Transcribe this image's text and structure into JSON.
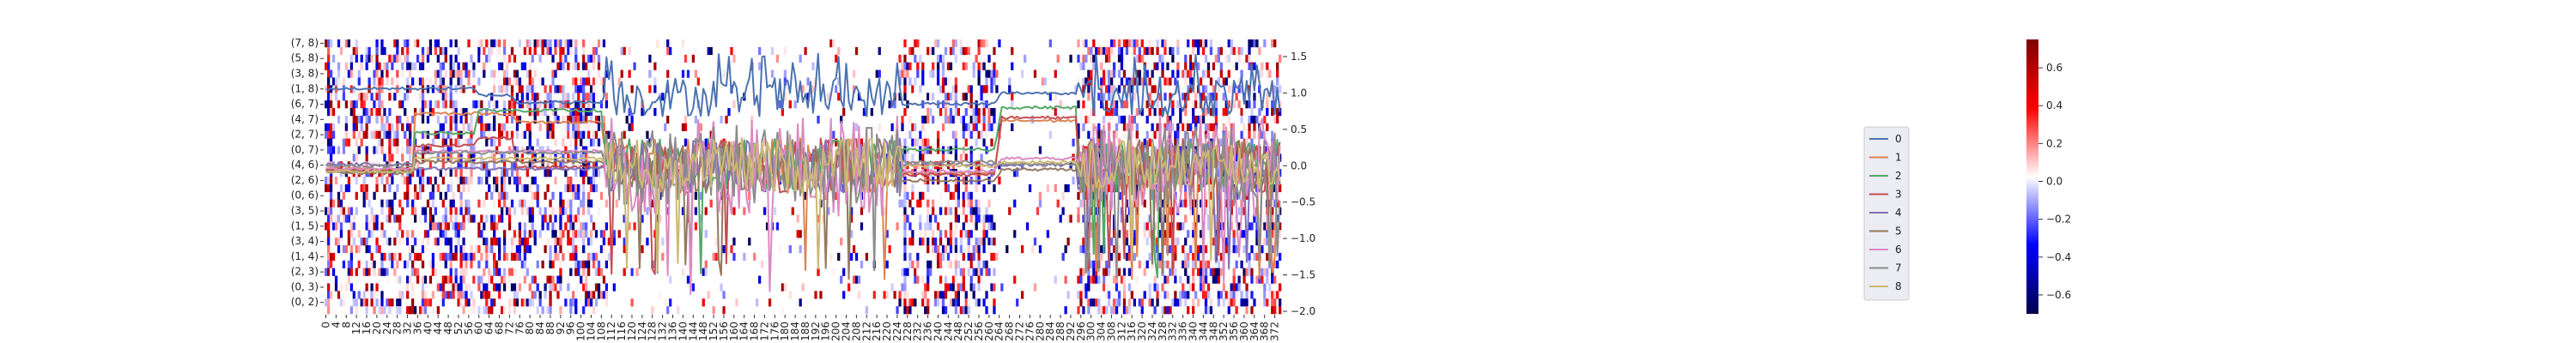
{
  "chart_data": [
    {
      "type": "heatmap",
      "x_tick_labels": [
        "0",
        "4",
        "8",
        "12",
        "16",
        "20",
        "24",
        "28",
        "32",
        "36",
        "40",
        "44",
        "48",
        "52",
        "56",
        "60",
        "64",
        "68",
        "72",
        "76",
        "80",
        "84",
        "88",
        "92",
        "96",
        "100",
        "104",
        "108",
        "112",
        "116",
        "120",
        "124",
        "128",
        "132",
        "136",
        "140",
        "144",
        "148",
        "152",
        "156",
        "160",
        "164",
        "168",
        "172",
        "176",
        "180",
        "184",
        "188",
        "192",
        "196",
        "200",
        "204",
        "208",
        "212",
        "216",
        "220",
        "224",
        "228",
        "232",
        "236",
        "240",
        "244",
        "248",
        "252",
        "256",
        "260",
        "264",
        "268",
        "272",
        "276",
        "280",
        "284",
        "288",
        "292",
        "296",
        "300",
        "304",
        "308",
        "312",
        "316",
        "320",
        "324",
        "328",
        "332",
        "336",
        "340",
        "344",
        "348",
        "352",
        "356",
        "360",
        "364",
        "368",
        "372"
      ],
      "n_columns": 375,
      "y_tick_labels": [
        "(7, 8)",
        "(5, 8)",
        "(3, 8)",
        "(1, 8)",
        "(6, 7)",
        "(4, 7)",
        "(2, 7)",
        "(0, 7)",
        "(4, 6)",
        "(2, 6)",
        "(0, 6)",
        "(3, 5)",
        "(1, 5)",
        "(3, 4)",
        "(1, 4)",
        "(2, 3)",
        "(0, 3)",
        "(0, 2)"
      ],
      "n_rows": 36,
      "colorbar": {
        "min": -0.7,
        "max": 0.75,
        "ticks": [
          -0.6,
          -0.4,
          -0.2,
          0.0,
          0.2,
          0.4,
          0.6
        ],
        "tick_labels": [
          "−0.6",
          "−0.4",
          "−0.2",
          "0.0",
          "0.2",
          "0.4",
          "0.6"
        ],
        "colormap": "seismic"
      },
      "active_column_bands": [
        [
          0,
          34
        ],
        [
          35,
          58
        ],
        [
          60,
          72
        ],
        [
          73,
          110
        ],
        [
          225,
          262
        ],
        [
          295,
          375
        ]
      ],
      "legend_placement": "right"
    },
    {
      "type": "line",
      "overlay": true,
      "ylim": [
        -2.0,
        1.7
      ],
      "y_ticks": [
        -2.0,
        -1.5,
        -1.0,
        -0.5,
        0.0,
        0.5,
        1.0,
        1.5
      ],
      "y_tick_labels": [
        "−2.0",
        "−1.5",
        "−1.0",
        "−0.5",
        "0.0",
        "0.5",
        "1.0",
        "1.5"
      ],
      "x_range": [
        0,
        375
      ],
      "series": [
        {
          "name": "0",
          "color": "#4c72b0",
          "segments": [
            [
              0,
              1.06
            ],
            [
              58,
              1.06
            ],
            [
              60,
              0.97
            ],
            [
              72,
              0.97
            ],
            [
              75,
              0.87
            ],
            [
              108,
              0.87
            ],
            [
              110,
              1.0
            ],
            [
              180,
              1.0
            ],
            [
              225,
              0.85
            ],
            [
              262,
              0.85
            ],
            [
              265,
              1.0
            ],
            [
              295,
              1.0
            ],
            [
              375,
              1.0
            ]
          ]
        },
        {
          "name": "1",
          "color": "#dd8452",
          "segments": [
            [
              0,
              -0.04
            ],
            [
              34,
              -0.04
            ],
            [
              35,
              0.72
            ],
            [
              73,
              0.72
            ],
            [
              75,
              0.6
            ],
            [
              108,
              0.6
            ],
            [
              110,
              0
            ],
            [
              180,
              0
            ],
            [
              225,
              -0.1
            ],
            [
              262,
              -0.1
            ],
            [
              265,
              0.62
            ],
            [
              295,
              0.62
            ],
            [
              375,
              0
            ]
          ]
        },
        {
          "name": "2",
          "color": "#55a868",
          "segments": [
            [
              0,
              -0.08
            ],
            [
              34,
              -0.08
            ],
            [
              35,
              0.45
            ],
            [
              58,
              0.45
            ],
            [
              60,
              0.76
            ],
            [
              108,
              0.76
            ],
            [
              110,
              0
            ],
            [
              225,
              0.22
            ],
            [
              262,
              0.22
            ],
            [
              265,
              0.8
            ],
            [
              295,
              0.8
            ],
            [
              375,
              0
            ]
          ]
        },
        {
          "name": "3",
          "color": "#c44e52",
          "segments": [
            [
              0,
              -0.06
            ],
            [
              34,
              -0.06
            ],
            [
              35,
              0.28
            ],
            [
              58,
              0.28
            ],
            [
              60,
              0.38
            ],
            [
              73,
              0.38
            ],
            [
              75,
              -0.02
            ],
            [
              108,
              -0.02
            ],
            [
              110,
              0
            ],
            [
              225,
              -0.12
            ],
            [
              262,
              -0.12
            ],
            [
              265,
              0.66
            ],
            [
              295,
              0.66
            ],
            [
              375,
              0
            ]
          ]
        },
        {
          "name": "4",
          "color": "#8172b3",
          "segments": [
            [
              0,
              0.02
            ],
            [
              34,
              0.02
            ],
            [
              35,
              -0.04
            ],
            [
              108,
              -0.04
            ],
            [
              110,
              0
            ],
            [
              225,
              0.02
            ],
            [
              262,
              0.02
            ],
            [
              265,
              0.01
            ],
            [
              295,
              0.01
            ],
            [
              375,
              0
            ]
          ]
        },
        {
          "name": "5",
          "color": "#937860",
          "segments": [
            [
              0,
              -0.1
            ],
            [
              34,
              -0.1
            ],
            [
              35,
              0.05
            ],
            [
              108,
              0.05
            ],
            [
              110,
              0
            ],
            [
              225,
              -0.2
            ],
            [
              262,
              -0.2
            ],
            [
              265,
              -0.05
            ],
            [
              295,
              -0.05
            ],
            [
              375,
              0
            ]
          ]
        },
        {
          "name": "6",
          "color": "#da8bc3",
          "segments": [
            [
              0,
              -0.04
            ],
            [
              34,
              -0.04
            ],
            [
              35,
              0.2
            ],
            [
              108,
              0.2
            ],
            [
              110,
              0
            ],
            [
              225,
              -0.08
            ],
            [
              262,
              -0.08
            ],
            [
              265,
              0.1
            ],
            [
              295,
              0.1
            ],
            [
              375,
              0
            ]
          ]
        },
        {
          "name": "7",
          "color": "#8c8c8c",
          "segments": [
            [
              0,
              0.0
            ],
            [
              34,
              0.0
            ],
            [
              35,
              0.18
            ],
            [
              108,
              0.18
            ],
            [
              110,
              0
            ],
            [
              225,
              0.05
            ],
            [
              262,
              0.05
            ],
            [
              265,
              0.02
            ],
            [
              295,
              0.02
            ],
            [
              375,
              0
            ]
          ]
        },
        {
          "name": "8",
          "color": "#ccb974",
          "segments": [
            [
              0,
              -0.08
            ],
            [
              34,
              -0.08
            ],
            [
              35,
              0.1
            ],
            [
              108,
              0.1
            ],
            [
              110,
              0
            ],
            [
              225,
              0.0
            ],
            [
              262,
              0.0
            ],
            [
              265,
              0.05
            ],
            [
              295,
              0.05
            ],
            [
              375,
              0
            ]
          ]
        }
      ],
      "noisy_intervals": [
        [
          110,
          180
        ],
        [
          180,
          225
        ],
        [
          295,
          375
        ]
      ]
    }
  ]
}
